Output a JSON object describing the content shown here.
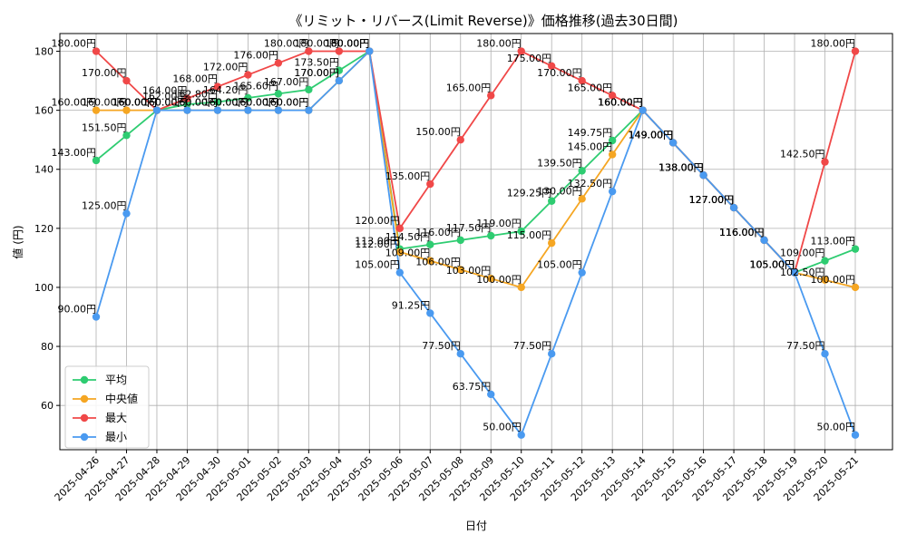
{
  "chart_data": {
    "type": "line",
    "title": "《リミット・リバース(Limit Reverse)》価格推移(過去30日間)",
    "xlabel": "日付",
    "ylabel": "値 (円)",
    "ylim": [
      45,
      186
    ],
    "yticks": [
      60,
      80,
      100,
      120,
      140,
      160,
      180
    ],
    "grid": true,
    "legend_position": "lower-left",
    "label_suffix": "円",
    "x": [
      "2025-04-26",
      "2025-04-27",
      "2025-04-28",
      "2025-04-29",
      "2025-04-30",
      "2025-05-01",
      "2025-05-02",
      "2025-05-03",
      "2025-05-04",
      "2025-05-05",
      "2025-05-06",
      "2025-05-07",
      "2025-05-08",
      "2025-05-09",
      "2025-05-10",
      "2025-05-11",
      "2025-05-12",
      "2025-05-13",
      "2025-05-14",
      "2025-05-15",
      "2025-05-16",
      "2025-05-17",
      "2025-05-18",
      "2025-05-19",
      "2025-05-20",
      "2025-05-21"
    ],
    "series": [
      {
        "name": "平均",
        "color": "#2ecc71",
        "values": [
          143.0,
          151.5,
          160.0,
          162.0,
          162.8,
          164.2,
          165.6,
          167.0,
          173.5,
          180.0,
          113.0,
          114.5,
          116.0,
          117.5,
          119.0,
          129.25,
          139.5,
          149.75,
          160.0,
          149.0,
          138.0,
          127.0,
          116.0,
          105.0,
          109.0,
          113.0
        ]
      },
      {
        "name": "中央値",
        "color": "#f5a623",
        "values": [
          160.0,
          160.0,
          160.0,
          160.0,
          160.0,
          160.0,
          160.0,
          160.0,
          170.0,
          180.0,
          112.0,
          109.0,
          106.0,
          103.0,
          100.0,
          115.0,
          130.0,
          145.0,
          160.0,
          149.0,
          138.0,
          127.0,
          116.0,
          105.0,
          102.5,
          100.0
        ]
      },
      {
        "name": "最大",
        "color": "#f04848",
        "values": [
          180.0,
          170.0,
          160.0,
          164.0,
          168.0,
          172.0,
          176.0,
          180.0,
          180.0,
          180.0,
          120.0,
          135.0,
          150.0,
          165.0,
          180.0,
          175.0,
          170.0,
          165.0,
          160.0,
          149.0,
          138.0,
          127.0,
          116.0,
          105.0,
          142.5,
          180.0
        ]
      },
      {
        "name": "最小",
        "color": "#4a9af0",
        "values": [
          90.0,
          125.0,
          160.0,
          160.0,
          160.0,
          160.0,
          160.0,
          160.0,
          170.0,
          180.0,
          105.0,
          91.25,
          77.5,
          63.75,
          50.0,
          77.5,
          105.0,
          132.5,
          160.0,
          149.0,
          138.0,
          127.0,
          116.0,
          105.0,
          77.5,
          50.0
        ]
      }
    ]
  }
}
